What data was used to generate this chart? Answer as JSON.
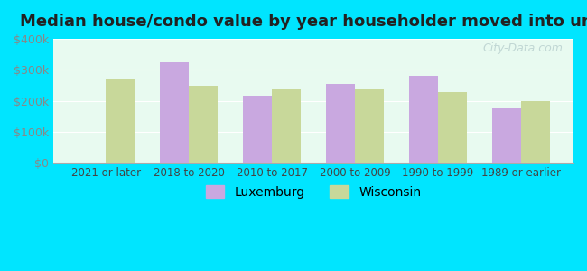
{
  "title": "Median house/condo value by year householder moved into unit",
  "categories": [
    "2021 or later",
    "2018 to 2020",
    "2010 to 2017",
    "2000 to 2009",
    "1990 to 1999",
    "1989 or earlier"
  ],
  "luxemburg_values": [
    0,
    325000,
    215000,
    255000,
    280000,
    175000
  ],
  "wisconsin_values": [
    270000,
    248000,
    238000,
    240000,
    228000,
    200000
  ],
  "luxemburg_color": "#c9a8e0",
  "wisconsin_color": "#c8d89a",
  "bar_width": 0.35,
  "ylim": [
    0,
    400000
  ],
  "yticks": [
    0,
    100000,
    200000,
    300000,
    400000
  ],
  "ytick_labels": [
    "$0",
    "$100k",
    "$200k",
    "$300k",
    "$400k"
  ],
  "background_color": "#e8faf0",
  "outer_background": "#00e5ff",
  "title_fontsize": 13,
  "watermark_text": "City-Data.com",
  "legend_labels": [
    "Luxemburg",
    "Wisconsin"
  ]
}
